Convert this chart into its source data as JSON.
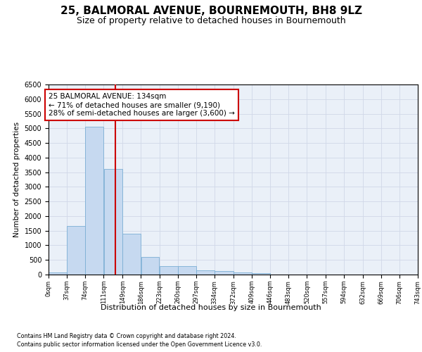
{
  "title": "25, BALMORAL AVENUE, BOURNEMOUTH, BH8 9LZ",
  "subtitle": "Size of property relative to detached houses in Bournemouth",
  "xlabel": "Distribution of detached houses by size in Bournemouth",
  "ylabel": "Number of detached properties",
  "footnote1": "Contains HM Land Registry data © Crown copyright and database right 2024.",
  "footnote2": "Contains public sector information licensed under the Open Government Licence v3.0.",
  "bar_edges": [
    0,
    37,
    74,
    111,
    149,
    186,
    223,
    260,
    297,
    334,
    372,
    409,
    446,
    483,
    520,
    557,
    594,
    632,
    669,
    706,
    743
  ],
  "bar_heights": [
    75,
    1650,
    5050,
    3600,
    1400,
    600,
    300,
    290,
    150,
    110,
    80,
    50,
    0,
    0,
    0,
    0,
    0,
    0,
    0,
    0
  ],
  "bar_color": "#c6d9f0",
  "bar_edge_color": "#7bafd4",
  "property_size": 134,
  "vline_color": "#cc0000",
  "annotation_text": "25 BALMORAL AVENUE: 134sqm\n← 71% of detached houses are smaller (9,190)\n28% of semi-detached houses are larger (3,600) →",
  "annotation_box_color": "#ffffff",
  "annotation_box_edge": "#cc0000",
  "ylim": [
    0,
    6500
  ],
  "yticks": [
    0,
    500,
    1000,
    1500,
    2000,
    2500,
    3000,
    3500,
    4000,
    4500,
    5000,
    5500,
    6000,
    6500
  ],
  "xtick_labels": [
    "0sqm",
    "37sqm",
    "74sqm",
    "111sqm",
    "149sqm",
    "186sqm",
    "223sqm",
    "260sqm",
    "297sqm",
    "334sqm",
    "372sqm",
    "409sqm",
    "446sqm",
    "483sqm",
    "520sqm",
    "557sqm",
    "594sqm",
    "632sqm",
    "669sqm",
    "706sqm",
    "743sqm"
  ],
  "grid_color": "#d0d8e8",
  "background_color": "#eaf0f8",
  "fig_background": "#ffffff",
  "title_fontsize": 11,
  "subtitle_fontsize": 9,
  "annotation_fontsize": 7.5,
  "ylabel_fontsize": 7.5,
  "xlabel_fontsize": 8,
  "ytick_fontsize": 7,
  "xtick_fontsize": 6
}
